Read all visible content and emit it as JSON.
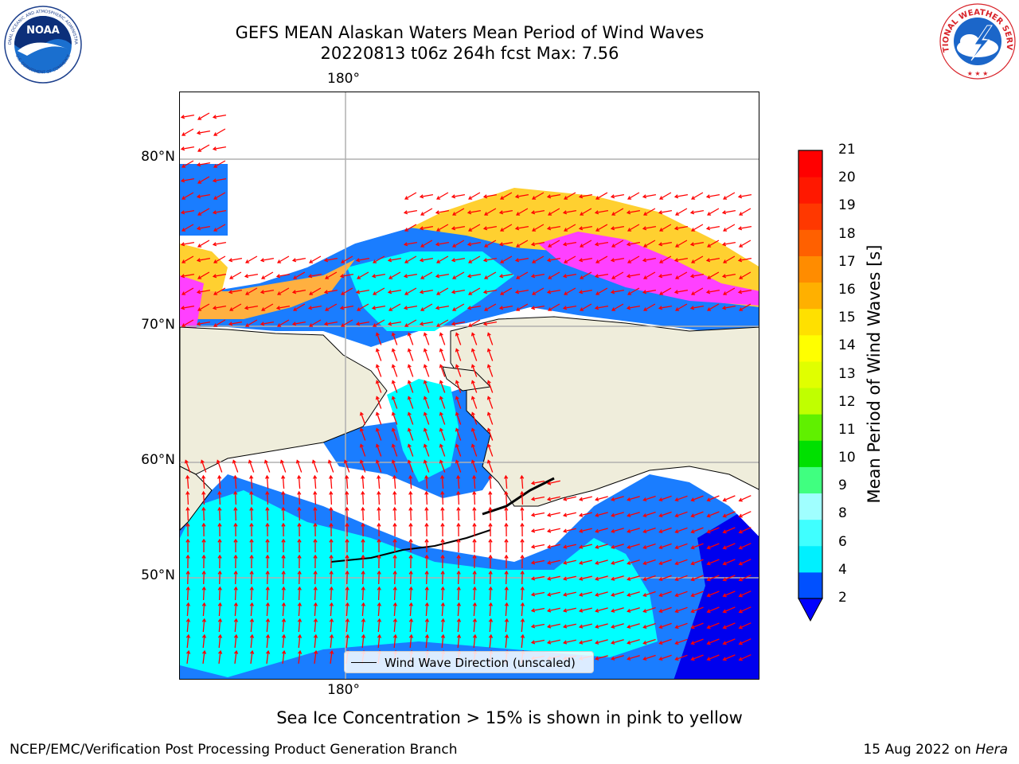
{
  "title_line1": "GEFS MEAN Alaskan Waters Mean Period of Wind Waves",
  "title_line2": "20220813 t06z 264h fcst   Max: 7.56",
  "map": {
    "top_lon_label": "180°",
    "bottom_lon_label": "180°",
    "lat_labels": [
      "80°N",
      "70°N",
      "60°N",
      "50°N"
    ],
    "legend_label": "Wind Wave Direction (unscaled)",
    "colors": {
      "land": "#efeddb",
      "water_2_4": "#1a7dff",
      "water_4_6": "#00ffff",
      "water_lt2": "#0000ee",
      "ice_low": "#ff40ff",
      "ice_high": "#ffd030",
      "arrow": "#ff0000",
      "grid": "#b0b0b0"
    }
  },
  "colorbar": {
    "label": "Mean Period of Wind Waves [s]",
    "ticks": [
      "21",
      "20",
      "19",
      "18",
      "17",
      "16",
      "15",
      "14",
      "13",
      "12",
      "11",
      "10",
      "9",
      "8",
      "6",
      "4",
      "2"
    ],
    "colors": [
      "#0050ff",
      "#00f0ff",
      "#40ffff",
      "#a0ffff",
      "#40ff80",
      "#00e000",
      "#60f000",
      "#c0ff00",
      "#e0ff00",
      "#ffff00",
      "#ffe000",
      "#ffb000",
      "#ff8c00",
      "#ff6000",
      "#ff3800",
      "#ff1800",
      "#ff0000"
    ],
    "extend_color": "#0000ff"
  },
  "footnote": "Sea Ice Concentration > 15% is shown in pink to yellow",
  "footer_left": "NCEP/EMC/Verification Post Processing Product Generation Branch",
  "footer_right_prefix": "15 Aug 2022 on ",
  "footer_right_host": "Hera",
  "logos": {
    "noaa_text": "NOAA",
    "noaa_ring_text": "NATIONAL OCEANIC AND ATMOSPHERIC ADMINISTRATION",
    "noaa_ring_bottom": "U.S. DEPARTMENT OF COMMERCE",
    "nws_ring_text": "NATIONAL WEATHER SERVICE"
  }
}
